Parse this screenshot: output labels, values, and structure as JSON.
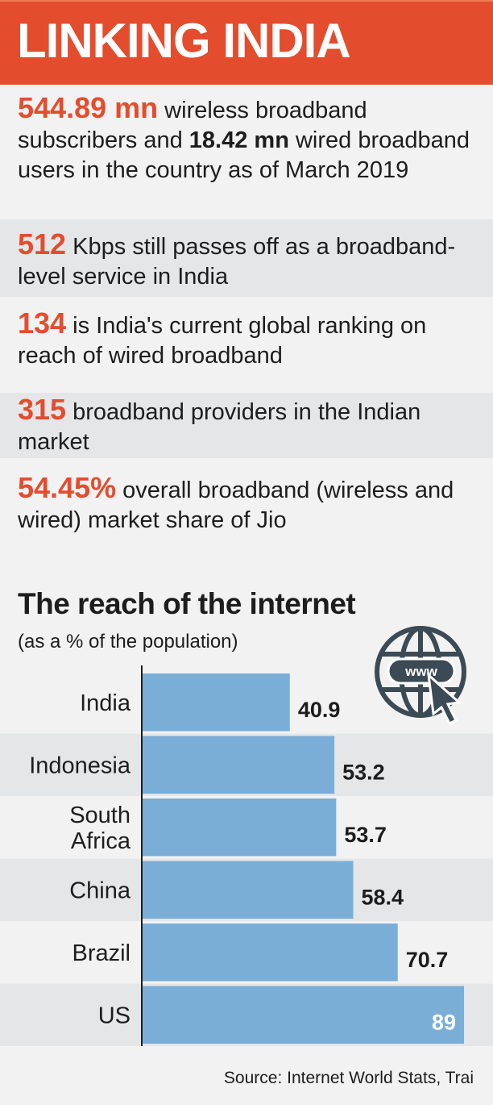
{
  "header": {
    "title": "LINKING INDIA"
  },
  "facts": [
    {
      "num": "544.89 mn",
      "t1": " wireless broadband subscribers and ",
      "bold": "18.42 mn",
      "t2": " wired broadband users in the country as of March 2019"
    },
    {
      "num": "512",
      "t1": " Kbps still passes off as a broadband-level service in India"
    },
    {
      "num": "134",
      "t1": " is India's current global ranking on reach of wired broadband"
    },
    {
      "num": "315",
      "t1": " broadband providers in the Indian market"
    },
    {
      "num": "54.45%",
      "t1": " overall broadband (wireless and wired) market share of Jio"
    }
  ],
  "icon": {
    "name": "globe-www-cursor-icon",
    "label": "www"
  },
  "colors": {
    "accent": "#e44c2e",
    "bar": "#7aaed6",
    "band": "#e4e6e8"
  },
  "chart_data": {
    "type": "bar",
    "orientation": "horizontal",
    "title": "The reach of the internet",
    "subtitle": "(as a % of the population)",
    "categories": [
      "India",
      "Indonesia",
      "South Africa",
      "China",
      "Brazil",
      "US"
    ],
    "values": [
      40.9,
      53.2,
      53.7,
      58.4,
      70.7,
      89
    ],
    "xlim": [
      0,
      89
    ],
    "grid": false,
    "source": "Source: Internet World Stats, Trai"
  }
}
